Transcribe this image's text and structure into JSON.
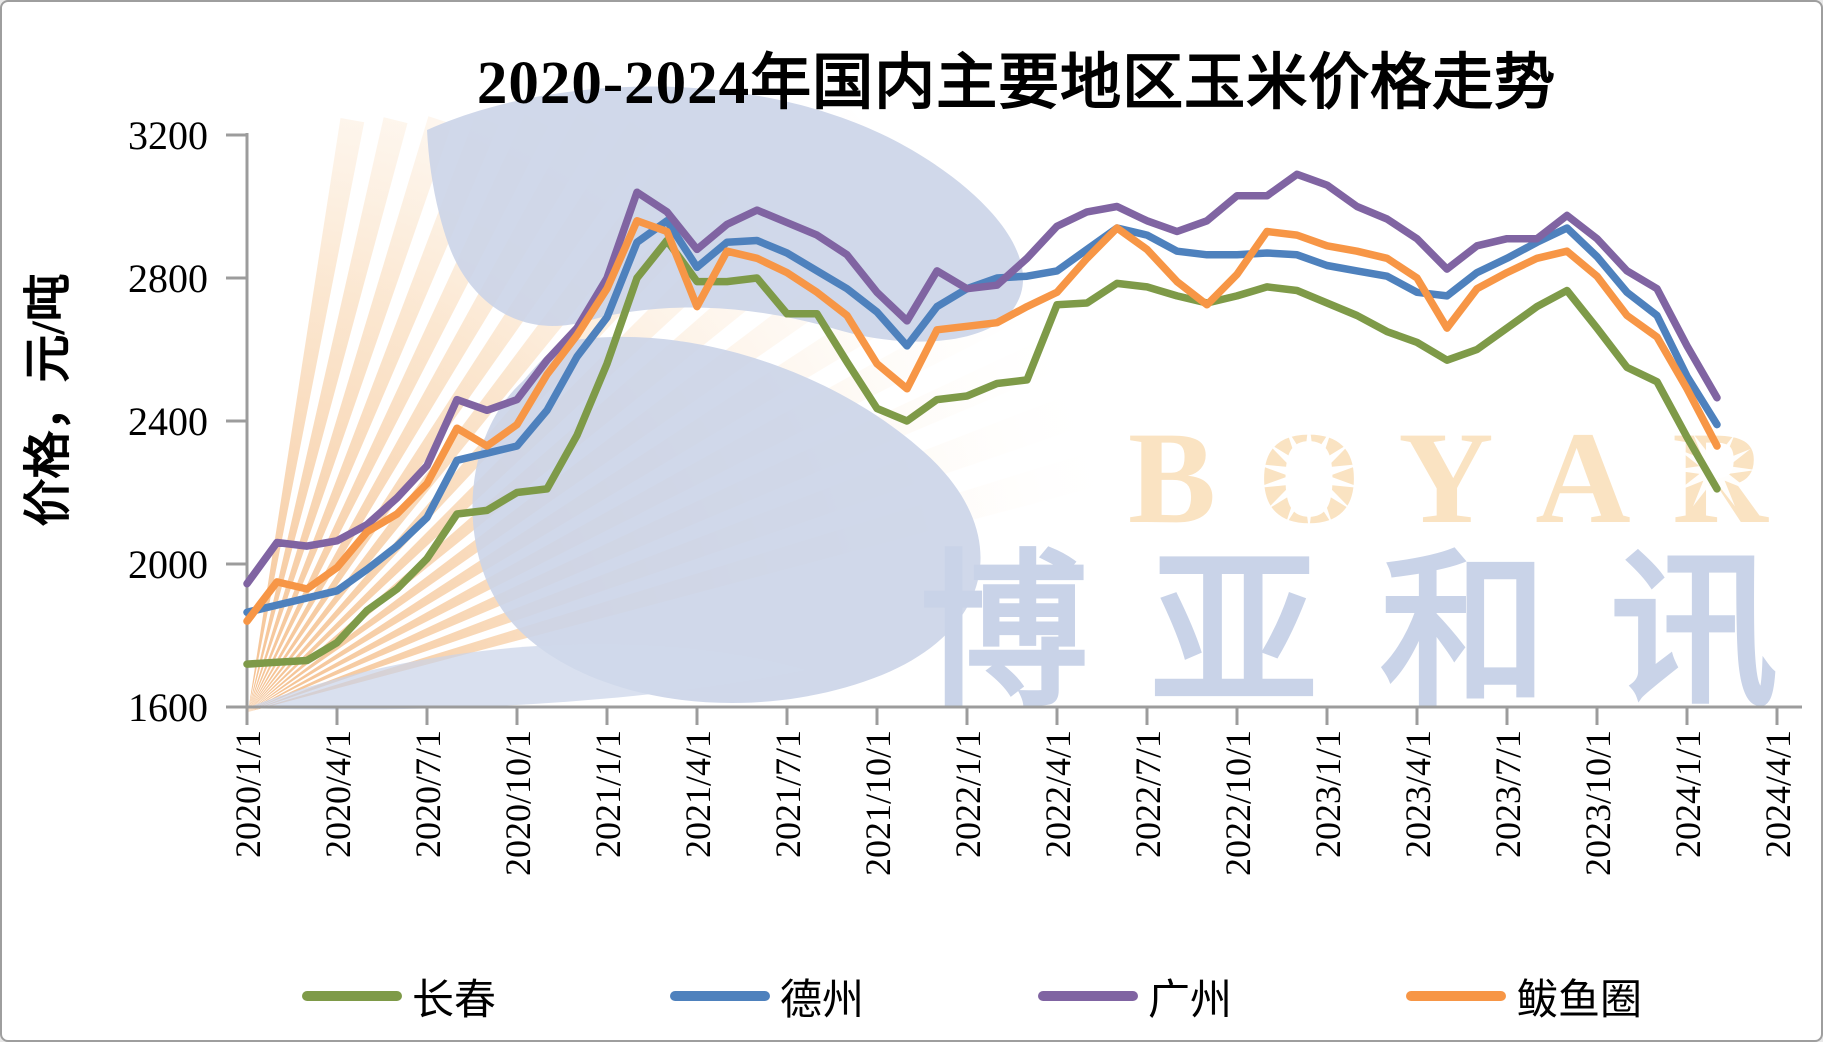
{
  "title": "2020-2024年国内主要地区玉米价格走势",
  "y_axis": {
    "label": "价格，元/吨",
    "ticks": [
      3200,
      2800,
      2400,
      2000,
      1600
    ],
    "min": 1600,
    "max": 3200
  },
  "x_axis": {
    "tick_labels": [
      "2020/1/1",
      "2020/4/1",
      "2020/7/1",
      "2020/10/1",
      "2021/1/1",
      "2021/4/1",
      "2021/7/1",
      "2021/10/1",
      "2022/1/1",
      "2022/4/1",
      "2022/7/1",
      "2022/10/1",
      "2023/1/1",
      "2023/4/1",
      "2023/7/1",
      "2023/10/1",
      "2024/1/1",
      "2024/4/1"
    ]
  },
  "watermark": {
    "brand_latin": "BOYAR",
    "brand_cjk": "博亚和讯",
    "peach_text_color": "#FAE3C2",
    "peach_ray_color": "#F4BE8C",
    "blue_color": "#C9D3E8"
  },
  "colors": {
    "axis": "#9c9c9c",
    "changchun_green": "#7E9A48",
    "dezhou_blue": "#4E81BD",
    "guangzhou_purple": "#8064A2",
    "bayuquan_orange": "#F79646"
  },
  "chart_data": {
    "type": "line",
    "title": "2020-2024年国内主要地区玉米价格走势",
    "xlabel": "",
    "ylabel": "价格，元/吨",
    "ylim": [
      1600,
      3200
    ],
    "grid": false,
    "legend_position": "bottom",
    "x_interval": "monthly",
    "x": [
      "2020/1",
      "2020/2",
      "2020/3",
      "2020/4",
      "2020/5",
      "2020/6",
      "2020/7",
      "2020/8",
      "2020/9",
      "2020/10",
      "2020/11",
      "2020/12",
      "2021/1",
      "2021/2",
      "2021/3",
      "2021/4",
      "2021/5",
      "2021/6",
      "2021/7",
      "2021/8",
      "2021/9",
      "2021/10",
      "2021/11",
      "2021/12",
      "2022/1",
      "2022/2",
      "2022/3",
      "2022/4",
      "2022/5",
      "2022/6",
      "2022/7",
      "2022/8",
      "2022/9",
      "2022/10",
      "2022/11",
      "2022/12",
      "2023/1",
      "2023/2",
      "2023/3",
      "2023/4",
      "2023/5",
      "2023/6",
      "2023/7",
      "2023/8",
      "2023/9",
      "2023/10",
      "2023/11",
      "2023/12",
      "2024/1",
      "2024/2"
    ],
    "series": [
      {
        "name": "长春",
        "color": "#7E9A48",
        "values": [
          1720,
          1725,
          1730,
          1780,
          1870,
          1930,
          2015,
          2140,
          2150,
          2200,
          2210,
          2360,
          2560,
          2800,
          2905,
          2790,
          2790,
          2800,
          2700,
          2700,
          2565,
          2435,
          2400,
          2460,
          2470,
          2505,
          2515,
          2725,
          2730,
          2785,
          2775,
          2750,
          2730,
          2750,
          2775,
          2765,
          2730,
          2695,
          2650,
          2620,
          2570,
          2600,
          2660,
          2720,
          2765,
          2660,
          2550,
          2510,
          2355,
          2210
        ]
      },
      {
        "name": "德州",
        "color": "#4E81BD",
        "values": [
          1865,
          1885,
          1905,
          1925,
          1985,
          2050,
          2130,
          2290,
          2310,
          2330,
          2430,
          2580,
          2690,
          2900,
          2960,
          2830,
          2900,
          2905,
          2870,
          2820,
          2770,
          2705,
          2610,
          2720,
          2770,
          2800,
          2805,
          2820,
          2880,
          2940,
          2920,
          2875,
          2865,
          2865,
          2870,
          2865,
          2835,
          2820,
          2805,
          2760,
          2750,
          2815,
          2855,
          2900,
          2940,
          2860,
          2760,
          2695,
          2525,
          2390
        ]
      },
      {
        "name": "广州",
        "color": "#8064A2",
        "values": [
          1945,
          2060,
          2050,
          2065,
          2110,
          2185,
          2275,
          2460,
          2430,
          2460,
          2570,
          2660,
          2800,
          3040,
          2985,
          2880,
          2950,
          2990,
          2955,
          2920,
          2865,
          2760,
          2680,
          2820,
          2770,
          2780,
          2855,
          2945,
          2985,
          3000,
          2960,
          2930,
          2960,
          3030,
          3030,
          3090,
          3060,
          3000,
          2965,
          2910,
          2825,
          2890,
          2910,
          2910,
          2975,
          2910,
          2820,
          2770,
          2610,
          2465
        ]
      },
      {
        "name": "鲅鱼圈",
        "color": "#F79646",
        "values": [
          1840,
          1950,
          1930,
          1990,
          2090,
          2140,
          2225,
          2380,
          2330,
          2390,
          2530,
          2640,
          2770,
          2960,
          2930,
          2720,
          2875,
          2855,
          2815,
          2760,
          2695,
          2560,
          2490,
          2655,
          2665,
          2675,
          2720,
          2760,
          2855,
          2940,
          2880,
          2790,
          2725,
          2810,
          2930,
          2920,
          2890,
          2875,
          2855,
          2800,
          2660,
          2770,
          2815,
          2855,
          2875,
          2805,
          2695,
          2635,
          2490,
          2330
        ]
      }
    ]
  }
}
